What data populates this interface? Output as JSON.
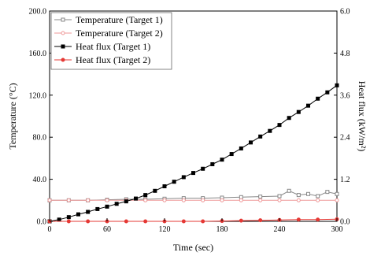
{
  "chart_data": {
    "type": "line",
    "xlabel": "Time (sec)",
    "ylabel_left": "Temperature (°C)",
    "ylabel_right": "Heat flux (kW/m²)",
    "xlim": [
      0,
      300
    ],
    "ylim_left": [
      0,
      200
    ],
    "ylim_right": [
      0,
      6
    ],
    "x_ticks": [
      0,
      60,
      120,
      180,
      240,
      300
    ],
    "y_left_ticks": [
      "0.0",
      "40.0",
      "80.0",
      "120.0",
      "160.0",
      "200.0"
    ],
    "y_right_ticks": [
      "0.0",
      "1.2",
      "2.4",
      "3.6",
      "4.8",
      "6.0"
    ],
    "y_right_tick_values": [
      0,
      1.2,
      2.4,
      3.6,
      4.8,
      6.0
    ],
    "y_left_tick_values": [
      0,
      40,
      80,
      120,
      160,
      200
    ],
    "grid": false,
    "legend_position": "top-left",
    "series": [
      {
        "name": "Temperature (Target 1)",
        "axis": "left",
        "color": "#888888",
        "marker": "open-square",
        "x": [
          0,
          20,
          40,
          60,
          80,
          100,
          120,
          140,
          160,
          180,
          200,
          220,
          240,
          250,
          260,
          270,
          280,
          290,
          300
        ],
        "y": [
          20,
          20,
          20,
          20.5,
          21,
          21,
          21.5,
          22,
          22,
          22.5,
          23,
          23.5,
          24,
          29,
          25,
          26,
          24,
          28,
          26
        ]
      },
      {
        "name": "Temperature (Target 2)",
        "axis": "left",
        "color": "#ef9a9a",
        "marker": "open-circle",
        "x": [
          0,
          20,
          40,
          60,
          80,
          100,
          120,
          140,
          160,
          180,
          200,
          220,
          240,
          260,
          280,
          300
        ],
        "y": [
          20,
          20,
          20,
          20,
          20,
          20,
          20,
          20,
          20,
          20,
          20,
          20,
          20,
          20,
          20,
          20
        ]
      },
      {
        "name": "Heat flux (Target 1)",
        "axis": "right",
        "color": "#000000",
        "marker": "filled-square",
        "x": [
          0,
          10,
          20,
          30,
          40,
          50,
          60,
          70,
          80,
          90,
          100,
          110,
          120,
          130,
          140,
          150,
          160,
          170,
          180,
          190,
          200,
          210,
          220,
          230,
          240,
          250,
          260,
          270,
          280,
          290,
          300
        ],
        "y": [
          0,
          0.05,
          0.12,
          0.2,
          0.27,
          0.35,
          0.42,
          0.5,
          0.57,
          0.65,
          0.75,
          0.87,
          1.0,
          1.13,
          1.26,
          1.38,
          1.5,
          1.63,
          1.76,
          1.92,
          2.08,
          2.25,
          2.42,
          2.58,
          2.75,
          2.95,
          3.12,
          3.3,
          3.5,
          3.68,
          3.88
        ]
      },
      {
        "name": "Heat flux (Target 2)",
        "axis": "right",
        "color": "#e53935",
        "marker": "filled-circle",
        "x": [
          0,
          20,
          40,
          60,
          80,
          100,
          120,
          140,
          160,
          180,
          200,
          220,
          240,
          260,
          280,
          300
        ],
        "y": [
          0,
          0,
          0,
          0,
          0,
          0,
          0,
          0,
          0,
          0.01,
          0.02,
          0.03,
          0.04,
          0.05,
          0.05,
          0.06
        ]
      }
    ]
  }
}
